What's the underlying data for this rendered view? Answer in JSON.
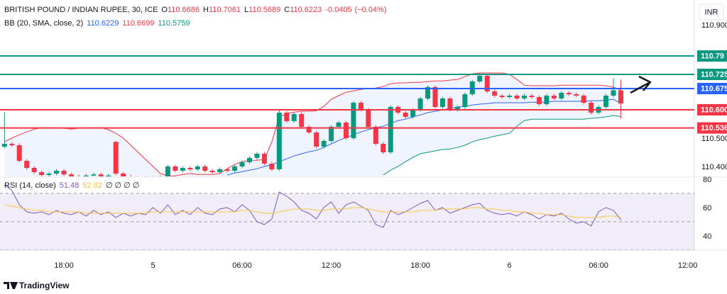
{
  "chart_data": {
    "type": "candlestick",
    "title": "BRITISH POUND / INDIAN RUPEE, 30, ICE",
    "ohlc_labels": [
      "O",
      "H",
      "L",
      "C"
    ],
    "change": -0.0405,
    "change_pct": -0.04,
    "change_pct_label": "(−0.04%)",
    "currency": "INR",
    "up_color": "#089981",
    "down_color": "#f23645",
    "categories": [
      null,
      null,
      null,
      null,
      null,
      null,
      null,
      null,
      "18:00",
      null,
      null,
      null,
      null,
      null,
      null,
      null,
      null,
      null,
      null,
      null,
      "5",
      null,
      null,
      null,
      null,
      null,
      null,
      null,
      null,
      null,
      null,
      null,
      "06:00",
      null,
      null,
      null,
      null,
      null,
      null,
      null,
      null,
      null,
      null,
      null,
      "12:00",
      null,
      null,
      null,
      null,
      null,
      null,
      null,
      null,
      null,
      null,
      null,
      "18:00",
      null,
      null,
      null,
      null,
      null,
      null,
      null,
      null,
      null,
      null,
      null,
      "6",
      null,
      null,
      null,
      null,
      null,
      null,
      null,
      null,
      null,
      null,
      null,
      "06:00",
      null,
      null,
      null,
      null,
      null,
      null,
      null,
      null,
      null,
      null,
      null,
      "12:00"
    ],
    "open": [
      110.47,
      110.48,
      110.475,
      110.42,
      110.395,
      110.38,
      110.37,
      110.375,
      110.385,
      110.372,
      110.365,
      110.36,
      110.368,
      110.372,
      110.365,
      110.487,
      110.375,
      110.365,
      110.36,
      110.355,
      110.36,
      110.358,
      110.362,
      110.4,
      110.385,
      110.395,
      110.39,
      110.4,
      110.385,
      110.38,
      110.39,
      110.385,
      110.4,
      110.415,
      110.43,
      110.445,
      110.41,
      110.39,
      110.59,
      110.56,
      110.585,
      110.54,
      110.52,
      110.47,
      110.49,
      110.54,
      110.555,
      110.5,
      110.625,
      110.6,
      110.54,
      110.48,
      110.45,
      110.61,
      110.59,
      110.575,
      110.6,
      110.64,
      110.68,
      110.61,
      110.64,
      110.6,
      110.61,
      110.655,
      110.7,
      110.72,
      110.665,
      110.65,
      110.645,
      110.65,
      110.64,
      110.65,
      110.645,
      110.62,
      110.65,
      110.64,
      110.66,
      110.655,
      110.65,
      110.625,
      110.59,
      110.61,
      110.65,
      110.6686,
      null,
      null,
      null,
      null,
      null,
      null,
      null,
      null,
      null
    ],
    "high": [
      110.592,
      110.486,
      110.481,
      110.426,
      110.401,
      110.386,
      110.381,
      110.391,
      110.391,
      110.378,
      110.371,
      110.374,
      110.378,
      110.378,
      110.374,
      110.49,
      110.381,
      110.371,
      110.366,
      110.366,
      110.366,
      110.368,
      110.406,
      110.406,
      110.401,
      110.401,
      110.406,
      110.406,
      110.391,
      110.396,
      110.396,
      110.406,
      110.421,
      110.436,
      110.451,
      110.451,
      110.416,
      110.6,
      110.596,
      110.591,
      110.591,
      110.546,
      110.526,
      110.496,
      110.546,
      110.561,
      110.561,
      110.631,
      110.631,
      110.606,
      110.546,
      110.486,
      110.616,
      110.616,
      110.596,
      110.606,
      110.646,
      110.686,
      110.686,
      110.646,
      110.646,
      110.616,
      110.661,
      110.706,
      110.73,
      110.726,
      110.671,
      110.656,
      110.656,
      110.656,
      110.656,
      110.656,
      110.651,
      110.656,
      110.656,
      110.666,
      110.666,
      110.661,
      110.656,
      110.631,
      110.616,
      110.656,
      110.712,
      110.7061,
      null,
      null,
      null,
      null,
      null,
      null,
      null,
      null,
      null
    ],
    "low": [
      110.464,
      110.469,
      110.414,
      110.389,
      110.374,
      110.364,
      110.364,
      110.369,
      110.366,
      110.359,
      110.354,
      110.354,
      110.362,
      110.359,
      110.359,
      110.369,
      110.359,
      110.354,
      110.349,
      110.349,
      110.352,
      110.352,
      110.356,
      110.379,
      110.379,
      110.384,
      110.384,
      110.379,
      110.374,
      110.374,
      110.379,
      110.379,
      110.394,
      110.409,
      110.424,
      110.404,
      110.384,
      110.385,
      110.554,
      110.554,
      110.534,
      110.514,
      110.464,
      110.464,
      110.484,
      110.534,
      110.494,
      110.494,
      110.594,
      110.534,
      110.474,
      110.444,
      110.444,
      110.584,
      110.569,
      110.569,
      110.594,
      110.634,
      110.604,
      110.604,
      110.594,
      110.594,
      110.604,
      110.649,
      110.694,
      110.659,
      110.644,
      110.639,
      110.639,
      110.634,
      110.634,
      110.639,
      110.614,
      110.614,
      110.634,
      110.634,
      110.649,
      110.644,
      110.619,
      110.584,
      110.584,
      110.604,
      110.644,
      110.5689,
      null,
      null,
      null,
      null,
      null,
      null,
      null,
      null,
      null
    ],
    "close": [
      110.48,
      110.475,
      110.42,
      110.395,
      110.38,
      110.37,
      110.375,
      110.385,
      110.372,
      110.365,
      110.36,
      110.368,
      110.372,
      110.365,
      110.368,
      110.375,
      110.365,
      110.36,
      110.355,
      110.36,
      110.358,
      110.362,
      110.4,
      110.385,
      110.395,
      110.39,
      110.4,
      110.385,
      110.38,
      110.39,
      110.385,
      110.4,
      110.415,
      110.43,
      110.445,
      110.41,
      110.39,
      110.59,
      110.56,
      110.585,
      110.54,
      110.52,
      110.47,
      110.49,
      110.54,
      110.555,
      110.5,
      110.625,
      110.6,
      110.54,
      110.48,
      110.45,
      110.61,
      110.59,
      110.575,
      110.6,
      110.64,
      110.68,
      110.61,
      110.64,
      110.6,
      110.61,
      110.655,
      110.7,
      110.72,
      110.665,
      110.65,
      110.645,
      110.65,
      110.64,
      110.65,
      110.645,
      110.62,
      110.65,
      110.64,
      110.66,
      110.655,
      110.65,
      110.625,
      110.59,
      110.61,
      110.65,
      110.669,
      110.6223,
      null,
      null,
      null,
      null,
      null,
      null,
      null,
      null,
      null
    ],
    "ylim": [
      110.3675,
      110.9875
    ],
    "yticks": [
      {
        "value": 110.9,
        "label": "110.900"
      },
      {
        "value": 110.5,
        "label": "110.500"
      },
      {
        "value": 110.4,
        "label": "110.400"
      }
    ],
    "levels": [
      {
        "value": 110.79,
        "label": "110.79",
        "color": "#089981"
      },
      {
        "value": 110.725,
        "label": "110.725",
        "color": "#089981"
      },
      {
        "value": 110.675,
        "label": "110.675",
        "color": "#2962ff"
      },
      {
        "value": 110.6,
        "label": "110.600",
        "color": "#f23645"
      },
      {
        "value": 110.536,
        "label": "110.536",
        "color": "#f23645"
      }
    ],
    "bollinger": {
      "name": "BB (20, SMA, close, 2)",
      "fill_color": "rgba(41,98,255,0.07)",
      "basis": {
        "color": "#2962ff",
        "values": [
          null,
          null,
          null,
          null,
          null,
          null,
          null,
          null,
          null,
          null,
          null,
          null,
          null,
          null,
          null,
          null,
          null,
          null,
          null,
          null,
          null,
          null,
          null,
          null,
          null,
          null,
          null,
          null,
          null,
          null,
          110.37,
          110.377,
          110.382,
          110.387,
          110.392,
          110.4,
          110.407,
          110.417,
          110.427,
          110.437,
          110.445,
          110.452,
          110.457,
          110.467,
          110.48,
          110.492,
          110.502,
          110.512,
          110.522,
          110.53,
          110.537,
          110.542,
          110.552,
          110.562,
          110.567,
          110.575,
          110.582,
          110.59,
          110.595,
          110.6,
          110.605,
          110.61,
          110.612,
          110.617,
          110.62,
          110.622,
          110.625,
          110.625,
          110.625,
          110.625,
          110.625,
          110.627,
          110.627,
          110.627,
          110.63,
          110.63,
          110.63,
          110.63,
          110.63,
          110.632,
          110.632,
          110.635,
          110.637,
          110.6229,
          null,
          null,
          null,
          null,
          null,
          null,
          null,
          null,
          null
        ]
      },
      "upper": {
        "color": "#f23645",
        "values": [
          110.4875,
          110.5,
          110.512,
          110.522,
          110.532,
          110.537,
          110.537,
          110.537,
          110.535,
          110.532,
          110.535,
          110.537,
          110.537,
          110.537,
          110.53,
          110.517,
          110.5,
          110.475,
          110.45,
          110.425,
          110.4,
          110.375,
          110.367,
          110.367,
          110.372,
          110.375,
          110.372,
          110.372,
          110.372,
          110.375,
          110.392,
          110.407,
          110.417,
          110.422,
          110.422,
          110.425,
          110.487,
          110.575,
          110.587,
          110.592,
          110.595,
          110.595,
          110.597,
          110.612,
          110.637,
          110.65,
          110.662,
          110.667,
          110.672,
          110.675,
          110.677,
          110.682,
          110.692,
          110.695,
          110.695,
          110.697,
          110.697,
          110.7,
          110.702,
          110.702,
          110.705,
          110.707,
          110.717,
          110.727,
          110.73,
          110.73,
          110.73,
          110.73,
          110.725,
          110.707,
          110.687,
          110.685,
          110.685,
          110.685,
          110.685,
          110.687,
          110.687,
          110.687,
          110.687,
          110.687,
          110.687,
          110.685,
          110.68,
          110.6699,
          null,
          null,
          null,
          null,
          null,
          null,
          null,
          null,
          null
        ]
      },
      "lower": {
        "color": "#089981",
        "values": [
          null,
          null,
          null,
          null,
          null,
          null,
          null,
          null,
          null,
          null,
          null,
          null,
          null,
          null,
          null,
          null,
          null,
          null,
          null,
          null,
          null,
          null,
          null,
          null,
          null,
          null,
          null,
          null,
          null,
          null,
          null,
          null,
          null,
          null,
          null,
          null,
          null,
          null,
          null,
          null,
          null,
          null,
          null,
          null,
          null,
          null,
          null,
          null,
          null,
          null,
          null,
          110.37,
          110.387,
          110.4,
          110.417,
          110.432,
          110.445,
          110.45,
          110.455,
          110.46,
          110.462,
          110.467,
          110.475,
          110.487,
          110.495,
          110.5,
          110.507,
          110.512,
          110.517,
          110.542,
          110.562,
          110.567,
          110.567,
          110.567,
          110.567,
          110.567,
          110.567,
          110.567,
          110.567,
          110.57,
          110.572,
          110.575,
          110.58,
          110.5759,
          null,
          null,
          null,
          null,
          null,
          null,
          null,
          null,
          null
        ]
      }
    },
    "rsi": {
      "name": "RSI (14, close)",
      "extra": "∅ ∅ ∅ ∅",
      "ylim": [
        30,
        80
      ],
      "yticks": [
        80,
        60,
        40
      ],
      "bands": [
        70,
        50,
        30
      ],
      "band_color": "rgba(126,87,194,0.1)",
      "series": [
        {
          "color": "#7e57c2",
          "values": [
            76,
            72,
            62,
            57,
            56,
            57,
            55,
            58,
            56,
            55,
            57,
            54,
            58,
            55,
            57,
            53,
            56,
            54,
            56,
            55,
            60,
            56,
            62,
            55,
            58,
            55,
            60,
            56,
            55,
            59,
            60,
            57,
            62,
            58,
            50,
            48,
            52,
            71,
            68,
            64,
            58,
            56,
            52,
            60,
            64,
            56,
            62,
            64,
            61,
            58,
            48,
            46,
            58,
            55,
            57,
            60,
            63,
            65,
            58,
            60,
            56,
            58,
            60,
            62,
            63,
            58,
            56,
            55,
            56,
            54,
            57,
            55,
            52,
            55,
            54,
            56,
            52,
            49,
            50,
            47,
            57,
            60,
            58,
            51.48,
            null,
            null,
            null,
            null,
            null,
            null,
            null,
            null,
            null
          ]
        },
        {
          "color": "#f5c542",
          "values": [
            62,
            61,
            60,
            59,
            58,
            58,
            57,
            57,
            57,
            57,
            57,
            56,
            56,
            56,
            56,
            56,
            56,
            56,
            56,
            56,
            57,
            57,
            57,
            57,
            57,
            57,
            57,
            57,
            57,
            57,
            57,
            57,
            58,
            58,
            57,
            56,
            56,
            57,
            58,
            59,
            59,
            59,
            58,
            58,
            59,
            59,
            59,
            60,
            60,
            59,
            58,
            57,
            57,
            57,
            57,
            57,
            58,
            58,
            58,
            59,
            59,
            59,
            59,
            60,
            60,
            59,
            59,
            58,
            58,
            57,
            57,
            56,
            56,
            55,
            55,
            55,
            54,
            53,
            53,
            53,
            53,
            54,
            54,
            52.82,
            null,
            null,
            null,
            null,
            null,
            null,
            null,
            null,
            null
          ]
        }
      ]
    },
    "brand": "TradingView"
  }
}
